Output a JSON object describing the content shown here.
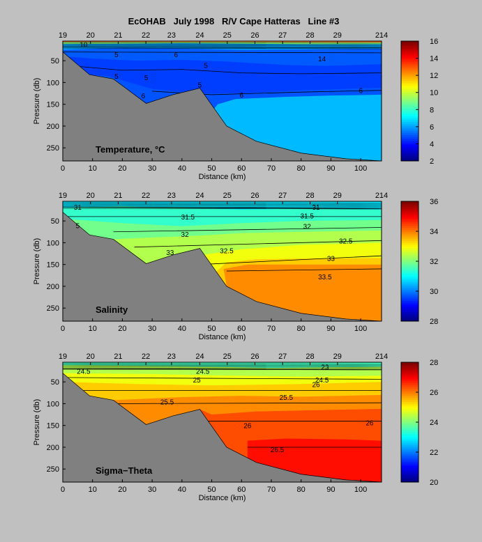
{
  "figure_title": "EcOHAB   July 1998   R/V Cape Hatteras   Line #3",
  "chart_data": [
    {
      "type": "contour",
      "panel_label": "Temperature, °C",
      "xlabel": "Distance (km)",
      "ylabel": "Pressure (db)",
      "xlim": [
        0,
        107
      ],
      "ylim": [
        280,
        5
      ],
      "x_ticks": [
        0,
        10,
        20,
        30,
        40,
        50,
        60,
        70,
        80,
        90,
        100
      ],
      "y_ticks": [
        50,
        100,
        150,
        200,
        250
      ],
      "station_labels": [
        {
          "label": "19",
          "x": 0
        },
        {
          "label": "20",
          "x": 9.3
        },
        {
          "label": "21",
          "x": 18.6
        },
        {
          "label": "22",
          "x": 27.9
        },
        {
          "label": "23",
          "x": 36.5
        },
        {
          "label": "24",
          "x": 46
        },
        {
          "label": "25",
          "x": 55.2
        },
        {
          "label": "26",
          "x": 64.5
        },
        {
          "label": "27",
          "x": 73.8
        },
        {
          "label": "28",
          "x": 83
        },
        {
          "label": "29",
          "x": 92.2
        },
        {
          "label": "214",
          "x": 107
        }
      ],
      "colorbar": {
        "min": 2,
        "max": 16,
        "ticks": [
          2,
          4,
          6,
          8,
          10,
          12,
          14,
          16
        ]
      },
      "contour_labels": [
        {
          "text": "6",
          "x": 38,
          "y": 35
        },
        {
          "text": "5",
          "x": 18,
          "y": 35
        },
        {
          "text": "5",
          "x": 48,
          "y": 60
        },
        {
          "text": "5",
          "x": 18,
          "y": 85
        },
        {
          "text": "5",
          "x": 28,
          "y": 88
        },
        {
          "text": "5",
          "x": 46,
          "y": 105
        },
        {
          "text": "6",
          "x": 27,
          "y": 130
        },
        {
          "text": "6",
          "x": 60,
          "y": 128
        },
        {
          "text": "6",
          "x": 100,
          "y": 118
        },
        {
          "text": "10",
          "x": 7,
          "y": 12
        },
        {
          "text": "14",
          "x": 87,
          "y": 45
        }
      ]
    },
    {
      "type": "contour",
      "panel_label": "Salinity",
      "xlabel": "Distance (km)",
      "ylabel": "Pressure (db)",
      "xlim": [
        0,
        107
      ],
      "ylim": [
        280,
        5
      ],
      "x_ticks": [
        0,
        10,
        20,
        30,
        40,
        50,
        60,
        70,
        80,
        90,
        100
      ],
      "y_ticks": [
        50,
        100,
        150,
        200,
        250
      ],
      "station_labels": [
        {
          "label": "19",
          "x": 0
        },
        {
          "label": "20",
          "x": 9.3
        },
        {
          "label": "21",
          "x": 18.6
        },
        {
          "label": "22",
          "x": 27.9
        },
        {
          "label": "23",
          "x": 36.5
        },
        {
          "label": "24",
          "x": 46
        },
        {
          "label": "25",
          "x": 55.2
        },
        {
          "label": "26",
          "x": 64.5
        },
        {
          "label": "27",
          "x": 73.8
        },
        {
          "label": "28",
          "x": 83
        },
        {
          "label": "29",
          "x": 92.2
        },
        {
          "label": "214",
          "x": 107
        }
      ],
      "colorbar": {
        "min": 28,
        "max": 36,
        "ticks": [
          28,
          30,
          32,
          34,
          36
        ]
      },
      "contour_labels": [
        {
          "text": "31",
          "x": 5,
          "y": 18
        },
        {
          "text": "31",
          "x": 85,
          "y": 18
        },
        {
          "text": "31.5",
          "x": 42,
          "y": 40
        },
        {
          "text": "31.5",
          "x": 82,
          "y": 38
        },
        {
          "text": "32",
          "x": 41,
          "y": 80
        },
        {
          "text": "32",
          "x": 82,
          "y": 62
        },
        {
          "text": "32.5",
          "x": 55,
          "y": 118
        },
        {
          "text": "32.5",
          "x": 95,
          "y": 95
        },
        {
          "text": "33",
          "x": 36,
          "y": 122
        },
        {
          "text": "33",
          "x": 90,
          "y": 135
        },
        {
          "text": "33.5",
          "x": 88,
          "y": 178
        },
        {
          "text": "5",
          "x": 5,
          "y": 60
        }
      ]
    },
    {
      "type": "contour",
      "panel_label": "Sigma−Theta",
      "xlabel": "Distance (km)",
      "ylabel": "Pressure (db)",
      "xlim": [
        0,
        107
      ],
      "ylim": [
        280,
        5
      ],
      "x_ticks": [
        0,
        10,
        20,
        30,
        40,
        50,
        60,
        70,
        80,
        90,
        100
      ],
      "y_ticks": [
        50,
        100,
        150,
        200,
        250
      ],
      "station_labels": [
        {
          "label": "19",
          "x": 0
        },
        {
          "label": "20",
          "x": 9.3
        },
        {
          "label": "21",
          "x": 18.6
        },
        {
          "label": "22",
          "x": 27.9
        },
        {
          "label": "23",
          "x": 36.5
        },
        {
          "label": "24",
          "x": 46
        },
        {
          "label": "25",
          "x": 55.2
        },
        {
          "label": "26",
          "x": 64.5
        },
        {
          "label": "27",
          "x": 73.8
        },
        {
          "label": "28",
          "x": 83
        },
        {
          "label": "29",
          "x": 92.2
        },
        {
          "label": "214",
          "x": 107
        }
      ],
      "colorbar": {
        "min": 20,
        "max": 28,
        "ticks": [
          20,
          22,
          24,
          26,
          28
        ]
      },
      "contour_labels": [
        {
          "text": "24.5",
          "x": 7,
          "y": 25
        },
        {
          "text": "24.5",
          "x": 47,
          "y": 25
        },
        {
          "text": "24.5",
          "x": 87,
          "y": 45
        },
        {
          "text": "25",
          "x": 45,
          "y": 45
        },
        {
          "text": "26",
          "x": 85,
          "y": 55
        },
        {
          "text": "23",
          "x": 88,
          "y": 15
        },
        {
          "text": "25.5",
          "x": 35,
          "y": 95
        },
        {
          "text": "25.5",
          "x": 75,
          "y": 85
        },
        {
          "text": "26",
          "x": 62,
          "y": 150
        },
        {
          "text": "26",
          "x": 103,
          "y": 143
        },
        {
          "text": "26.5",
          "x": 72,
          "y": 205
        }
      ]
    }
  ]
}
